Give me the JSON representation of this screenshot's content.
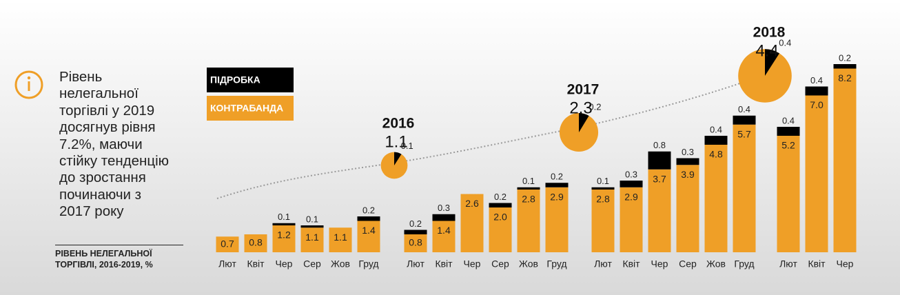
{
  "note": [
    "Рівень",
    "нелегальної",
    "торгівлі у 2019",
    "досягнув рівня",
    "7.2%, маючи",
    "стійку тенденцію",
    "до зростання",
    "починаючи з",
    "2017 року"
  ],
  "title": "РІВЕНЬ НЕЛЕГАЛЬНОЇ ТОРГІВЛІ, 2016-2019, %",
  "chart_data": [
    {
      "type": "bar",
      "stacked": true,
      "categories": [
        "Лют",
        "Квіт",
        "Чер",
        "Сер",
        "Жов",
        "Груд"
      ],
      "series": [
        {
          "name": "КОНТРАБАНДА",
          "color": "#EF9F27",
          "values": [
            0.7,
            0.8,
            1.2,
            1.1,
            1.1,
            1.4
          ]
        },
        {
          "name": "ПІДРОБКА",
          "color": "#000000",
          "values": [
            null,
            null,
            0.1,
            0.1,
            null,
            0.2
          ]
        }
      ]
    },
    {
      "type": "bar",
      "stacked": true,
      "categories": [
        "Лют",
        "Квіт",
        "Чер",
        "Сер",
        "Жов",
        "Груд"
      ],
      "series": [
        {
          "color": "#EF9F27",
          "values": [
            0.8,
            1.4,
            2.6,
            2.0,
            2.8,
            2.9
          ],
          "value_labels": [
            "0.8",
            "1.4",
            "2.6",
            "2.0",
            "2.8",
            "2.9"
          ]
        },
        {
          "color": "#000000",
          "values": [
            0.2,
            0.3,
            null,
            0.2,
            0.1,
            0.2
          ]
        }
      ]
    },
    {
      "type": "bar",
      "stacked": true,
      "categories": [
        "Лют",
        "Квіт",
        "Чер",
        "Сер",
        "Жов",
        "Груд"
      ],
      "series": [
        {
          "color": "#EF9F27",
          "values": [
            2.8,
            2.9,
            3.7,
            3.9,
            4.8,
            5.7
          ]
        },
        {
          "color": "#000000",
          "values": [
            0.1,
            0.3,
            0.8,
            0.3,
            0.4,
            0.4
          ]
        }
      ]
    },
    {
      "type": "bar",
      "stacked": true,
      "categories": [
        "Лют",
        "Квіт",
        "Чер"
      ],
      "series": [
        {
          "color": "#EF9F27",
          "values": [
            5.2,
            7.0,
            8.2
          ],
          "value_labels": [
            "5.2",
            "7.0",
            "8.2"
          ]
        },
        {
          "color": "#000000",
          "values": [
            0.4,
            0.4,
            0.2
          ]
        }
      ]
    },
    {
      "type": "pie",
      "title": "2016",
      "total": 1.1,
      "values": [
        0.1
      ],
      "colors": [
        "#000000",
        "#EF9F27"
      ]
    },
    {
      "type": "pie",
      "title": "2017",
      "total": 2.3,
      "values": [
        0.2
      ],
      "colors": [
        "#000000",
        "#EF9F27"
      ]
    },
    {
      "type": "pie",
      "title": "2018",
      "total": 4.4,
      "values": [
        0.4
      ],
      "colors": [
        "#000000",
        "#EF9F27"
      ]
    }
  ]
}
